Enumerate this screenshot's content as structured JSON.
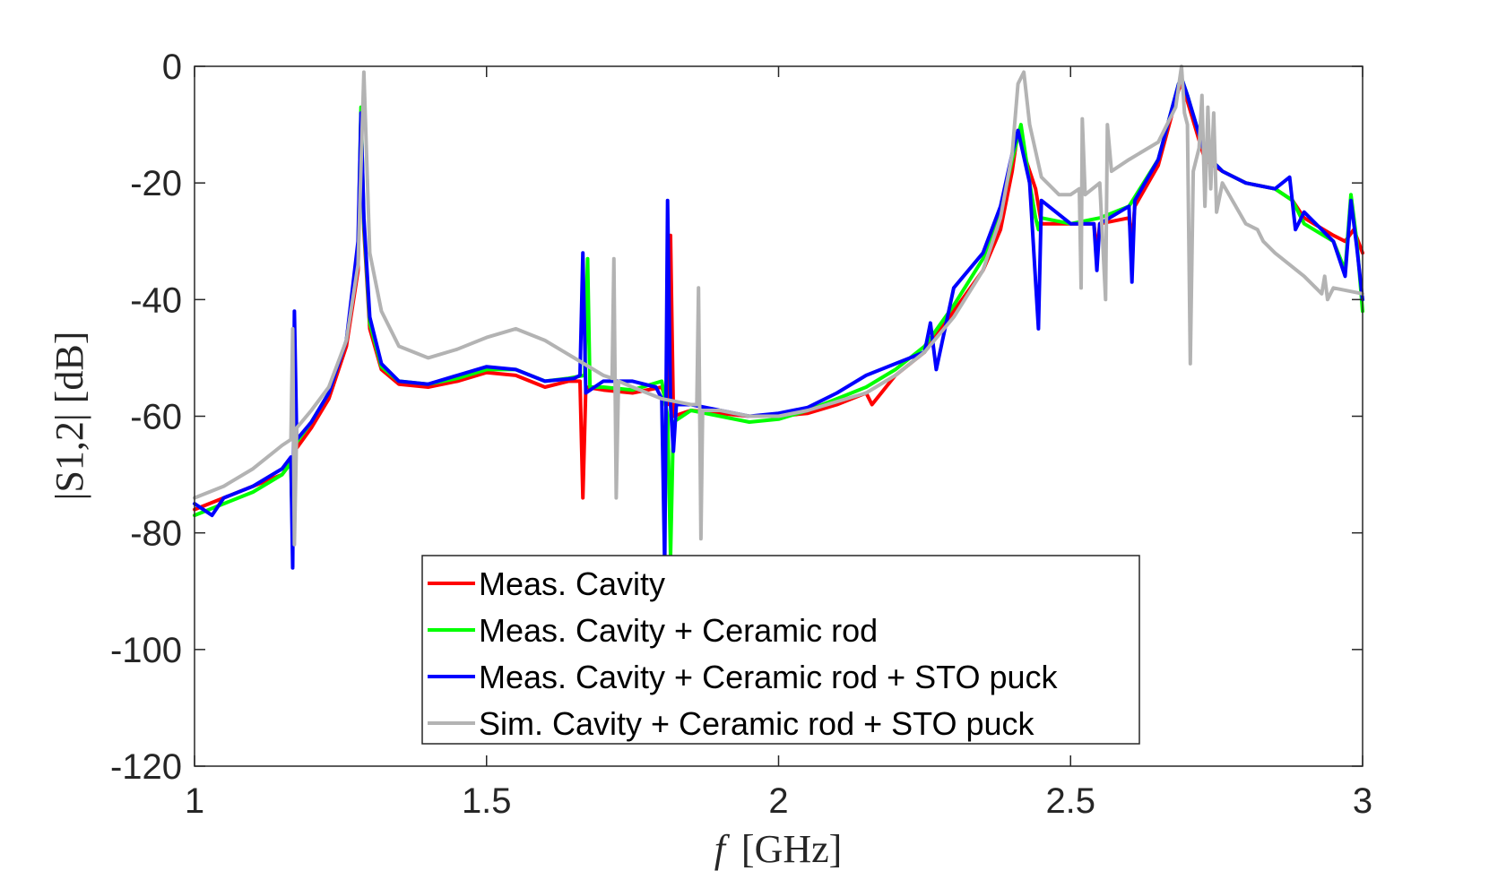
{
  "chart_data": {
    "type": "line",
    "title": "",
    "xlabel_var": "f",
    "xlabel_unit": "[GHz]",
    "ylabel": "|S1,2| [dB]",
    "xlim": [
      1,
      3
    ],
    "ylim": [
      -120,
      0
    ],
    "grid": false,
    "legend_position": "bottom-center",
    "x_ticks": [
      1,
      1.5,
      2,
      2.5,
      3
    ],
    "x_tick_labels": [
      "1",
      "1.5",
      "2",
      "2.5",
      "3"
    ],
    "y_ticks": [
      0,
      -20,
      -40,
      -60,
      -80,
      -100,
      -120
    ],
    "y_tick_labels": [
      "0",
      "-20",
      "-40",
      "-60",
      "-80",
      "-100",
      "-120"
    ],
    "series": [
      {
        "name": "Meas. Cavity",
        "color": "#ff0000",
        "points": [
          [
            1.0,
            -76
          ],
          [
            1.05,
            -74
          ],
          [
            1.1,
            -72
          ],
          [
            1.15,
            -70
          ],
          [
            1.165,
            -68
          ],
          [
            1.168,
            -80
          ],
          [
            1.171,
            -66
          ],
          [
            1.2,
            -62
          ],
          [
            1.23,
            -57
          ],
          [
            1.26,
            -48
          ],
          [
            1.28,
            -35
          ],
          [
            1.285,
            -8
          ],
          [
            1.29,
            -28
          ],
          [
            1.3,
            -45
          ],
          [
            1.32,
            -52
          ],
          [
            1.35,
            -54.5
          ],
          [
            1.4,
            -55
          ],
          [
            1.45,
            -54
          ],
          [
            1.5,
            -52.5
          ],
          [
            1.55,
            -53
          ],
          [
            1.6,
            -55
          ],
          [
            1.64,
            -54
          ],
          [
            1.66,
            -54
          ],
          [
            1.665,
            -74
          ],
          [
            1.67,
            -55
          ],
          [
            1.7,
            -55.5
          ],
          [
            1.75,
            -56
          ],
          [
            1.8,
            -55
          ],
          [
            1.81,
            -58
          ],
          [
            1.815,
            -29
          ],
          [
            1.82,
            -60
          ],
          [
            1.85,
            -59
          ],
          [
            1.9,
            -59.5
          ],
          [
            1.95,
            -60
          ],
          [
            2.0,
            -60
          ],
          [
            2.05,
            -59.5
          ],
          [
            2.1,
            -58
          ],
          [
            2.15,
            -56
          ],
          [
            2.16,
            -58
          ],
          [
            2.2,
            -53
          ],
          [
            2.25,
            -49
          ],
          [
            2.3,
            -42
          ],
          [
            2.35,
            -35
          ],
          [
            2.38,
            -28
          ],
          [
            2.4,
            -18
          ],
          [
            2.41,
            -11
          ],
          [
            2.42,
            -15
          ],
          [
            2.44,
            -21
          ],
          [
            2.45,
            -27
          ],
          [
            2.5,
            -27
          ],
          [
            2.54,
            -27
          ],
          [
            2.545,
            -32
          ],
          [
            2.55,
            -27
          ],
          [
            2.6,
            -26
          ],
          [
            2.605,
            -30
          ],
          [
            2.61,
            -24
          ],
          [
            2.65,
            -17
          ],
          [
            2.685,
            -4
          ],
          [
            2.69,
            -3
          ],
          [
            2.7,
            -6
          ],
          [
            2.73,
            -16
          ],
          [
            2.76,
            -18
          ],
          [
            2.8,
            -20
          ],
          [
            2.85,
            -21
          ],
          [
            2.88,
            -23
          ],
          [
            2.9,
            -26
          ],
          [
            2.95,
            -29
          ],
          [
            2.97,
            -30
          ],
          [
            2.985,
            -28
          ],
          [
            3.0,
            -32
          ]
        ]
      },
      {
        "name": "Meas. Cavity + Ceramic rod",
        "color": "#00ff00",
        "points": [
          [
            1.0,
            -77
          ],
          [
            1.05,
            -75
          ],
          [
            1.1,
            -73
          ],
          [
            1.15,
            -70
          ],
          [
            1.165,
            -68
          ],
          [
            1.168,
            -82
          ],
          [
            1.171,
            -65
          ],
          [
            1.2,
            -61
          ],
          [
            1.23,
            -56
          ],
          [
            1.26,
            -47
          ],
          [
            1.28,
            -32
          ],
          [
            1.285,
            -7
          ],
          [
            1.29,
            -27
          ],
          [
            1.3,
            -44
          ],
          [
            1.32,
            -51.5
          ],
          [
            1.35,
            -54
          ],
          [
            1.4,
            -54.5
          ],
          [
            1.45,
            -53.5
          ],
          [
            1.5,
            -52
          ],
          [
            1.55,
            -52
          ],
          [
            1.6,
            -54
          ],
          [
            1.64,
            -53.5
          ],
          [
            1.668,
            -53
          ],
          [
            1.673,
            -33
          ],
          [
            1.677,
            -55
          ],
          [
            1.7,
            -55
          ],
          [
            1.75,
            -55.5
          ],
          [
            1.8,
            -54
          ],
          [
            1.81,
            -60
          ],
          [
            1.815,
            -84
          ],
          [
            1.82,
            -61
          ],
          [
            1.85,
            -59
          ],
          [
            1.9,
            -60
          ],
          [
            1.95,
            -61
          ],
          [
            2.0,
            -60.5
          ],
          [
            2.05,
            -59
          ],
          [
            2.1,
            -57
          ],
          [
            2.15,
            -55
          ],
          [
            2.2,
            -52
          ],
          [
            2.25,
            -48
          ],
          [
            2.3,
            -41
          ],
          [
            2.35,
            -33
          ],
          [
            2.38,
            -25
          ],
          [
            2.4,
            -16
          ],
          [
            2.415,
            -10
          ],
          [
            2.43,
            -20
          ],
          [
            2.44,
            -26
          ],
          [
            2.445,
            -28
          ],
          [
            2.45,
            -26
          ],
          [
            2.5,
            -27
          ],
          [
            2.55,
            -26
          ],
          [
            2.6,
            -24
          ],
          [
            2.65,
            -16
          ],
          [
            2.685,
            -3
          ],
          [
            2.69,
            -2
          ],
          [
            2.7,
            -5
          ],
          [
            2.73,
            -15
          ],
          [
            2.76,
            -18
          ],
          [
            2.8,
            -20
          ],
          [
            2.85,
            -21
          ],
          [
            2.88,
            -23
          ],
          [
            2.9,
            -27
          ],
          [
            2.95,
            -30
          ],
          [
            2.97,
            -35
          ],
          [
            2.98,
            -22
          ],
          [
            2.99,
            -30
          ],
          [
            3.0,
            -42
          ]
        ]
      },
      {
        "name": "Meas. Cavity + Ceramic rod + STO puck",
        "color": "#0000ff",
        "points": [
          [
            1.0,
            -75
          ],
          [
            1.03,
            -77
          ],
          [
            1.05,
            -74
          ],
          [
            1.1,
            -72
          ],
          [
            1.15,
            -69
          ],
          [
            1.165,
            -67
          ],
          [
            1.168,
            -86
          ],
          [
            1.171,
            -42
          ],
          [
            1.175,
            -64
          ],
          [
            1.2,
            -61
          ],
          [
            1.23,
            -56
          ],
          [
            1.26,
            -47
          ],
          [
            1.28,
            -30
          ],
          [
            1.285,
            -8
          ],
          [
            1.29,
            -26
          ],
          [
            1.3,
            -43
          ],
          [
            1.32,
            -51
          ],
          [
            1.35,
            -54
          ],
          [
            1.4,
            -54.5
          ],
          [
            1.45,
            -53
          ],
          [
            1.5,
            -51.5
          ],
          [
            1.55,
            -52
          ],
          [
            1.6,
            -54
          ],
          [
            1.65,
            -53.5
          ],
          [
            1.66,
            -53
          ],
          [
            1.665,
            -32
          ],
          [
            1.67,
            -56
          ],
          [
            1.7,
            -54
          ],
          [
            1.75,
            -54
          ],
          [
            1.79,
            -55
          ],
          [
            1.8,
            -57
          ],
          [
            1.805,
            -86
          ],
          [
            1.81,
            -23
          ],
          [
            1.815,
            -58
          ],
          [
            1.82,
            -66
          ],
          [
            1.825,
            -58
          ],
          [
            1.85,
            -58
          ],
          [
            1.9,
            -59
          ],
          [
            1.95,
            -60
          ],
          [
            2.0,
            -59.5
          ],
          [
            2.05,
            -58.5
          ],
          [
            2.1,
            -56
          ],
          [
            2.15,
            -53
          ],
          [
            2.2,
            -51
          ],
          [
            2.25,
            -49
          ],
          [
            2.26,
            -44
          ],
          [
            2.27,
            -52
          ],
          [
            2.3,
            -38
          ],
          [
            2.35,
            -32
          ],
          [
            2.38,
            -24
          ],
          [
            2.4,
            -15
          ],
          [
            2.41,
            -11
          ],
          [
            2.43,
            -20
          ],
          [
            2.445,
            -45
          ],
          [
            2.45,
            -23
          ],
          [
            2.5,
            -27
          ],
          [
            2.54,
            -27
          ],
          [
            2.545,
            -35
          ],
          [
            2.55,
            -27
          ],
          [
            2.6,
            -24
          ],
          [
            2.605,
            -37
          ],
          [
            2.61,
            -23
          ],
          [
            2.65,
            -16
          ],
          [
            2.685,
            -3
          ],
          [
            2.69,
            -2
          ],
          [
            2.7,
            -5
          ],
          [
            2.73,
            -15
          ],
          [
            2.76,
            -18
          ],
          [
            2.8,
            -20
          ],
          [
            2.85,
            -21
          ],
          [
            2.875,
            -19
          ],
          [
            2.885,
            -28
          ],
          [
            2.9,
            -25
          ],
          [
            2.95,
            -30
          ],
          [
            2.97,
            -36
          ],
          [
            2.98,
            -23
          ],
          [
            2.99,
            -31
          ],
          [
            3.0,
            -40
          ]
        ]
      },
      {
        "name": "Sim. Cavity + Ceramic rod + STO puck",
        "color": "#b3b3b3",
        "points": [
          [
            1.0,
            -74
          ],
          [
            1.05,
            -72
          ],
          [
            1.1,
            -69
          ],
          [
            1.15,
            -65
          ],
          [
            1.165,
            -64
          ],
          [
            1.168,
            -45
          ],
          [
            1.171,
            -82
          ],
          [
            1.175,
            -62
          ],
          [
            1.2,
            -59
          ],
          [
            1.23,
            -55
          ],
          [
            1.26,
            -47
          ],
          [
            1.28,
            -34
          ],
          [
            1.29,
            -1
          ],
          [
            1.3,
            -32
          ],
          [
            1.32,
            -42
          ],
          [
            1.35,
            -48
          ],
          [
            1.4,
            -50
          ],
          [
            1.45,
            -48.5
          ],
          [
            1.5,
            -46.5
          ],
          [
            1.55,
            -45
          ],
          [
            1.6,
            -47
          ],
          [
            1.65,
            -50
          ],
          [
            1.7,
            -53
          ],
          [
            1.715,
            -53.5
          ],
          [
            1.718,
            -33
          ],
          [
            1.722,
            -74
          ],
          [
            1.726,
            -54
          ],
          [
            1.75,
            -55
          ],
          [
            1.8,
            -57
          ],
          [
            1.85,
            -58
          ],
          [
            1.86,
            -58
          ],
          [
            1.863,
            -38
          ],
          [
            1.867,
            -81
          ],
          [
            1.87,
            -59
          ],
          [
            1.9,
            -59
          ],
          [
            1.95,
            -60
          ],
          [
            2.0,
            -60
          ],
          [
            2.05,
            -59
          ],
          [
            2.1,
            -57.5
          ],
          [
            2.15,
            -56
          ],
          [
            2.2,
            -53
          ],
          [
            2.25,
            -49
          ],
          [
            2.3,
            -43
          ],
          [
            2.35,
            -35
          ],
          [
            2.38,
            -26
          ],
          [
            2.4,
            -15
          ],
          [
            2.41,
            -3
          ],
          [
            2.42,
            -1
          ],
          [
            2.43,
            -10
          ],
          [
            2.45,
            -19
          ],
          [
            2.48,
            -22
          ],
          [
            2.5,
            -22
          ],
          [
            2.515,
            -21
          ],
          [
            2.518,
            -38
          ],
          [
            2.52,
            -9
          ],
          [
            2.525,
            -22
          ],
          [
            2.55,
            -20
          ],
          [
            2.56,
            -40
          ],
          [
            2.563,
            -10
          ],
          [
            2.57,
            -18
          ],
          [
            2.6,
            -16
          ],
          [
            2.65,
            -13
          ],
          [
            2.68,
            -7
          ],
          [
            2.69,
            0
          ],
          [
            2.695,
            -8
          ],
          [
            2.7,
            -10
          ],
          [
            2.705,
            -51
          ],
          [
            2.71,
            -18
          ],
          [
            2.72,
            -14
          ],
          [
            2.725,
            -5
          ],
          [
            2.73,
            -24
          ],
          [
            2.735,
            -7
          ],
          [
            2.74,
            -21
          ],
          [
            2.745,
            -8
          ],
          [
            2.75,
            -25
          ],
          [
            2.76,
            -20
          ],
          [
            2.8,
            -27
          ],
          [
            2.82,
            -28
          ],
          [
            2.83,
            -30
          ],
          [
            2.85,
            -32
          ],
          [
            2.9,
            -36
          ],
          [
            2.92,
            -38
          ],
          [
            2.93,
            -39
          ],
          [
            2.935,
            -36
          ],
          [
            2.94,
            -40
          ],
          [
            2.95,
            -38
          ],
          [
            3.0,
            -39
          ]
        ]
      }
    ]
  }
}
